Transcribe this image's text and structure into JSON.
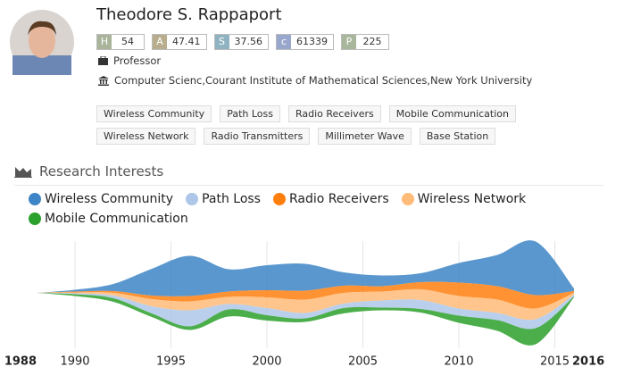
{
  "profile": {
    "name": "Theodore S. Rappaport",
    "metrics": [
      {
        "label": "H",
        "value": 54
      },
      {
        "label": "A",
        "value": 47.41
      },
      {
        "label": "S",
        "value": 37.56
      },
      {
        "label": "c",
        "value": 61339
      },
      {
        "label": "P",
        "value": 225
      }
    ],
    "position": "Professor",
    "affiliation": "Computer Scienc,Courant Institute of Mathematical Sciences,New York University",
    "tags": [
      "Wireless Community",
      "Path Loss",
      "Radio Receivers",
      "Mobile Communication",
      "Wireless Network",
      "Radio Transmitters",
      "Millimeter Wave",
      "Base Station"
    ]
  },
  "section_title": "Research Interests",
  "chart_data": {
    "type": "streamgraph",
    "x": [
      1988,
      1990,
      1992,
      1994,
      1996,
      1998,
      2000,
      2002,
      2004,
      2006,
      2008,
      2010,
      2012,
      2014,
      2016
    ],
    "xlim": [
      1988,
      2016
    ],
    "xticks": [
      1990,
      1995,
      2000,
      2005,
      2010,
      2015
    ],
    "grid": true,
    "series": [
      {
        "name": "Wireless Community",
        "color": "#3d85c6",
        "values": [
          0,
          2,
          8,
          30,
          45,
          25,
          28,
          30,
          15,
          12,
          10,
          22,
          35,
          60,
          3
        ]
      },
      {
        "name": "Path Loss",
        "color": "#aec7e8",
        "values": [
          0,
          1,
          3,
          8,
          18,
          6,
          8,
          6,
          5,
          8,
          10,
          8,
          8,
          10,
          2
        ]
      },
      {
        "name": "Radio Receivers",
        "color": "#ff7f0e",
        "values": [
          0,
          1,
          2,
          4,
          6,
          6,
          8,
          10,
          8,
          6,
          8,
          15,
          15,
          15,
          2
        ]
      },
      {
        "name": "Wireless Network",
        "color": "#ffbb78",
        "values": [
          0,
          1,
          3,
          8,
          10,
          8,
          12,
          15,
          12,
          10,
          12,
          14,
          15,
          12,
          2
        ]
      },
      {
        "name": "Mobile Communication",
        "color": "#2ca02c",
        "values": [
          0,
          2,
          4,
          4,
          4,
          8,
          6,
          4,
          6,
          3,
          4,
          8,
          12,
          18,
          1
        ]
      }
    ]
  }
}
